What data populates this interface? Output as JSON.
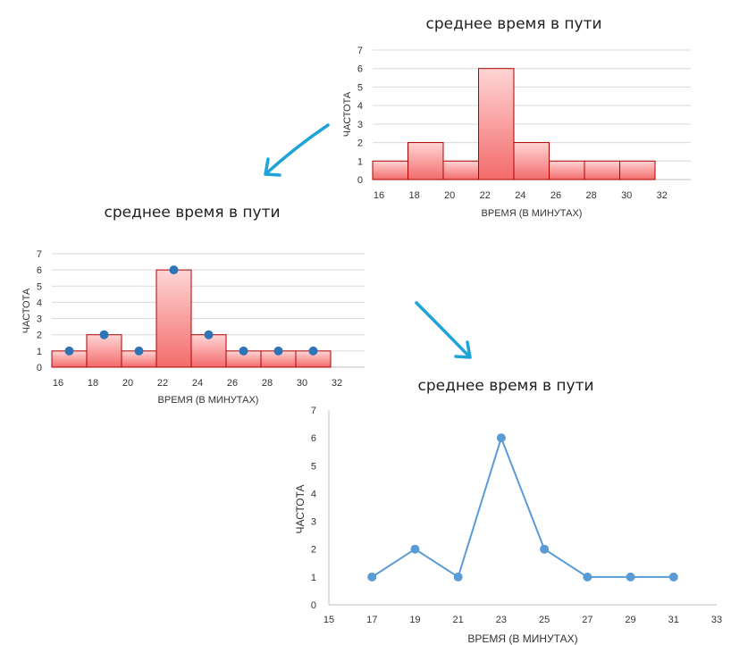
{
  "chart_data": [
    {
      "type": "bar",
      "title": "среднее время в пути",
      "xlabel": "ВРЕМЯ (В МИНУТАХ)",
      "ylabel": "ЧАСТОТА",
      "bin_edges": [
        16,
        18,
        20,
        22,
        24,
        26,
        28,
        30,
        32
      ],
      "x_ticks": [
        16,
        18,
        20,
        22,
        24,
        26,
        28,
        30,
        32
      ],
      "values": [
        1,
        2,
        1,
        6,
        2,
        1,
        1,
        1
      ],
      "ylim": [
        0,
        7
      ],
      "y_ticks": [
        0,
        1,
        2,
        3,
        4,
        5,
        6,
        7
      ],
      "grid": "horizontal"
    },
    {
      "type": "bar",
      "title": "среднее время в пути",
      "xlabel": "ВРЕМЯ (В МИНУТАХ)",
      "ylabel": "ЧАСТОТА",
      "bin_edges": [
        16,
        18,
        20,
        22,
        24,
        26,
        28,
        30,
        32
      ],
      "x_ticks": [
        16,
        18,
        20,
        22,
        24,
        26,
        28,
        30,
        32
      ],
      "values": [
        1,
        2,
        1,
        6,
        2,
        1,
        1,
        1
      ],
      "midpoints": [
        17,
        19,
        21,
        23,
        25,
        27,
        29,
        31
      ],
      "ylim": [
        0,
        7
      ],
      "y_ticks": [
        0,
        1,
        2,
        3,
        4,
        5,
        6,
        7
      ],
      "grid": "horizontal"
    },
    {
      "type": "line",
      "title": "среднее время в пути",
      "xlabel": "ВРЕМЯ (В МИНУТАХ)",
      "ylabel": "ЧАСТОТА",
      "x": [
        17,
        19,
        21,
        23,
        25,
        27,
        29,
        31
      ],
      "y": [
        1,
        2,
        1,
        6,
        2,
        1,
        1,
        1
      ],
      "x_ticks": [
        15,
        17,
        19,
        21,
        23,
        25,
        27,
        29,
        31,
        33
      ],
      "xlim": [
        15,
        33
      ],
      "ylim": [
        0,
        7
      ],
      "y_ticks": [
        0,
        1,
        2,
        3,
        4,
        5,
        6,
        7
      ],
      "grid": "none"
    }
  ],
  "arrows": [
    "arrow-down-left",
    "arrow-down-right"
  ]
}
